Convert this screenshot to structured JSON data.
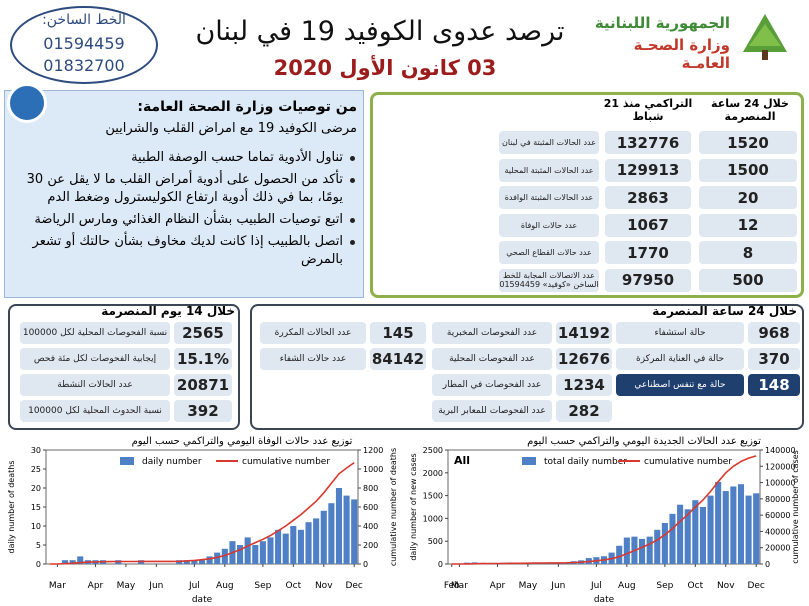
{
  "header": {
    "hotline_title": "الخط الساخن:",
    "hotline_numbers": [
      "01594459",
      "01832700"
    ],
    "title": "ترصد عدوى الكوفيد 19 في لبنان",
    "date": "03 كانون الأول 2020",
    "ministry": [
      "الجمهورية اللبنانية",
      "وزارة الصحـة العامـة"
    ]
  },
  "recommendations": {
    "title": "من توصيات وزارة الصحة العامة:",
    "subtitle": "مرضى الكوفيد 19 مع امراض القلب والشرايين",
    "items": [
      "تناول الأدوية تماما حسب الوصفة الطبية",
      "تأكد من الحصول على أدوية أمراض القلب ما لا يقل عن 30 يومًا، بما في ذلك أدوية ارتفاع الكوليسترول وضغط الدم",
      "اتبع توصيات الطبيب بشأن النظام الغذائي ومارس الرياضة",
      "اتصل بالطبيب إذا كانت لديك مخاوف بشأن حالتك أو تشعر بالمرض"
    ]
  },
  "summary_table": {
    "headers": [
      "خلال 24 ساعة المنصرمة",
      "التراكمي منذ 21 شباط"
    ],
    "rows": [
      {
        "label": "عدد الحالات المثبتة في لبنان",
        "cumulative": "132776",
        "daily": "1520"
      },
      {
        "label": "عدد الحالات المثبتة المحلية",
        "cumulative": "129913",
        "daily": "1500"
      },
      {
        "label": "عدد الحالات المثبتة الوافدة",
        "cumulative": "2863",
        "daily": "20"
      },
      {
        "label": "عدد حالات الوفاة",
        "cumulative": "1067",
        "daily": "12"
      },
      {
        "label": "عدد حالات القطاع الصحي",
        "cumulative": "1770",
        "daily": "8"
      },
      {
        "label": "عدد الاتصالات المجابة للخط الساخن «كوفيد» 01594459",
        "cumulative": "97950",
        "daily": "500"
      }
    ]
  },
  "last_14_days": {
    "title": "خلال 14 يوم المنصرمة",
    "rows": [
      {
        "label": "نسبة الفحوصات المحلية لكل 100000",
        "value": "2565"
      },
      {
        "label": "إيجابية الفحوصات لكل مئة فحص",
        "value": "15.1%"
      },
      {
        "label": "عدد الحالات النشطة",
        "value": "20871"
      },
      {
        "label": "نسبة الحدوث المحلية لكل 100000",
        "value": "392"
      }
    ]
  },
  "last_24_hours": {
    "title": "خلال 24 ساعة المنصرمة",
    "groups": [
      [
        {
          "label": "حالة استشفاء",
          "value": "968"
        },
        {
          "label": "حالة في العناية المركزة",
          "value": "370"
        },
        {
          "label": "حالة مع تنفس اصطناعي",
          "value": "148"
        }
      ],
      [
        {
          "label": "عدد الفحوصات المخبرية",
          "value": "14192"
        },
        {
          "label": "عدد الفحوصات المحلية",
          "value": "12676"
        },
        {
          "label": "عدد الفحوصات في المطار",
          "value": "1234"
        },
        {
          "label": "عدد الفحوصات للمعابر البرية",
          "value": "282"
        }
      ],
      [
        {
          "label": "عدد الحالات المكررة",
          "value": "145"
        },
        {
          "label": "عدد حالات الشفاء",
          "value": "84142"
        }
      ]
    ]
  },
  "chart_data": [
    {
      "type": "combo",
      "title": "توزيع عدد حالات الوفاة اليومي والتراكمي حسب اليوم",
      "xlabel": "date",
      "ylabel": "daily number of deaths",
      "y2label": "cumulative number of deaths",
      "categories": [
        null,
        "Mar",
        null,
        null,
        null,
        null,
        "Apr",
        null,
        null,
        null,
        "May",
        null,
        null,
        null,
        "Jun",
        null,
        null,
        null,
        null,
        "Jul",
        null,
        null,
        null,
        "Aug",
        null,
        null,
        null,
        null,
        "Sep",
        null,
        null,
        null,
        "Oct",
        null,
        null,
        null,
        "Nov",
        null,
        null,
        null,
        "Dec"
      ],
      "series": [
        {
          "name": "daily number",
          "color": "#4f7fc5",
          "values": [
            0,
            0,
            1,
            1,
            2,
            1,
            1,
            1,
            0,
            1,
            0,
            0,
            1,
            0,
            0,
            0,
            0,
            1,
            1,
            1,
            1,
            2,
            3,
            4,
            6,
            5,
            7,
            5,
            6,
            7,
            9,
            8,
            10,
            9,
            11,
            12,
            14,
            16,
            20,
            18,
            17
          ]
        },
        {
          "name": "cumulative number",
          "color": "#d9382e",
          "axis": "y2",
          "values": [
            0,
            0,
            3,
            8,
            14,
            20,
            22,
            24,
            25,
            26,
            26,
            26,
            27,
            27,
            27,
            27,
            27,
            28,
            33,
            38,
            45,
            55,
            70,
            90,
            120,
            150,
            190,
            225,
            260,
            300,
            350,
            400,
            460,
            520,
            590,
            660,
            750,
            850,
            950,
            1010,
            1067
          ]
        }
      ],
      "ylim": [
        0,
        30
      ],
      "yticks": [
        0,
        5,
        10,
        15,
        20,
        25,
        30
      ],
      "y2lim": [
        0,
        1200
      ],
      "y2ticks": [
        0,
        200,
        400,
        600,
        800,
        1000,
        1200
      ]
    },
    {
      "type": "combo",
      "title": "توزيع عدد الحالات الجديدة اليومي والتراكمي حسب اليوم",
      "annotation": "All",
      "xlabel": "date",
      "ylabel": "daily number of new cases",
      "y2label": "cumulative number of cases",
      "categories": [
        "Feb",
        "Mar",
        null,
        null,
        null,
        null,
        "Apr",
        null,
        null,
        null,
        "May",
        null,
        null,
        null,
        "Jun",
        null,
        null,
        null,
        null,
        "Jul",
        null,
        null,
        null,
        "Aug",
        null,
        null,
        null,
        null,
        "Sep",
        null,
        null,
        null,
        "Oct",
        null,
        null,
        null,
        "Nov",
        null,
        null,
        null,
        "Dec"
      ],
      "series": [
        {
          "name": "total daily number",
          "color": "#4f7fc5",
          "values": [
            0,
            5,
            30,
            35,
            25,
            15,
            10,
            8,
            20,
            30,
            15,
            20,
            10,
            15,
            20,
            30,
            60,
            80,
            130,
            150,
            170,
            250,
            400,
            580,
            600,
            550,
            600,
            750,
            900,
            1100,
            1300,
            1200,
            1400,
            1250,
            1500,
            1800,
            1600,
            1700,
            1750,
            1500,
            1550
          ]
        },
        {
          "name": "cumulative number",
          "color": "#d9382e",
          "axis": "y2",
          "values": [
            0,
            0,
            100,
            300,
            500,
            600,
            650,
            700,
            800,
            900,
            1000,
            1100,
            1200,
            1300,
            1400,
            1500,
            1800,
            2200,
            2900,
            3900,
            5000,
            6500,
            9000,
            12500,
            16500,
            20500,
            24500,
            29500,
            36000,
            43500,
            52500,
            60500,
            70000,
            78500,
            89000,
            101000,
            112000,
            120000,
            126000,
            130000,
            132776
          ]
        }
      ],
      "ylim": [
        0,
        2500
      ],
      "yticks": [
        0,
        500,
        1000,
        1500,
        2000,
        2500
      ],
      "y2lim": [
        0,
        140000
      ],
      "y2ticks": [
        0,
        20000,
        40000,
        60000,
        80000,
        100000,
        120000,
        140000
      ]
    }
  ]
}
